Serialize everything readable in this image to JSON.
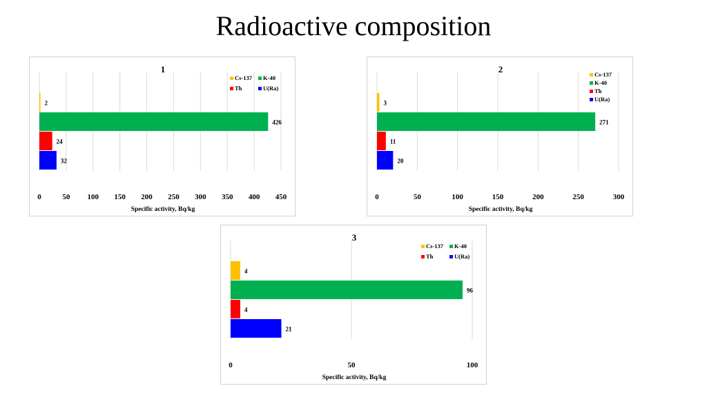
{
  "page": {
    "title": "Radioactive composition"
  },
  "colors": {
    "Cs-137": "#ffc000",
    "K-40": "#00b050",
    "Th": "#ff0000",
    "U(Ra)": "#0000ff",
    "grid": "#d9d9d9"
  },
  "chart_data": [
    {
      "type": "bar",
      "orientation": "horizontal",
      "title": "1",
      "xlabel": "Specific activity, Bq/kg",
      "xlim": [
        0,
        450
      ],
      "xticks": [
        0,
        50,
        100,
        150,
        200,
        250,
        300,
        350,
        400,
        450
      ],
      "grid": true,
      "legend_position": "top-right",
      "legend_layout": "2x2",
      "series": [
        {
          "name": "Cs-137",
          "value": 2
        },
        {
          "name": "K-40",
          "value": 426
        },
        {
          "name": "Th",
          "value": 24
        },
        {
          "name": "U(Ra)",
          "value": 32
        }
      ]
    },
    {
      "type": "bar",
      "orientation": "horizontal",
      "title": "2",
      "xlabel": "Specific activity, Bq/kg",
      "xlim": [
        0,
        300
      ],
      "xticks": [
        0,
        50,
        100,
        150,
        200,
        250,
        300
      ],
      "grid": true,
      "legend_position": "top-right",
      "legend_layout": "vertical",
      "series": [
        {
          "name": "Cs-137",
          "value": 3
        },
        {
          "name": "K-40",
          "value": 271
        },
        {
          "name": "Th",
          "value": 11
        },
        {
          "name": "U(Ra)",
          "value": 20
        }
      ]
    },
    {
      "type": "bar",
      "orientation": "horizontal",
      "title": "3",
      "xlabel": "Specific activity, Bq/kg",
      "xlim": [
        0,
        100
      ],
      "xticks": [
        0,
        50,
        100
      ],
      "grid": true,
      "legend_position": "top-right",
      "legend_layout": "2x2",
      "series": [
        {
          "name": "Cs-137",
          "value": 4
        },
        {
          "name": "K-40",
          "value": 96
        },
        {
          "name": "Th",
          "value": 4
        },
        {
          "name": "U(Ra)",
          "value": 21
        }
      ]
    }
  ]
}
